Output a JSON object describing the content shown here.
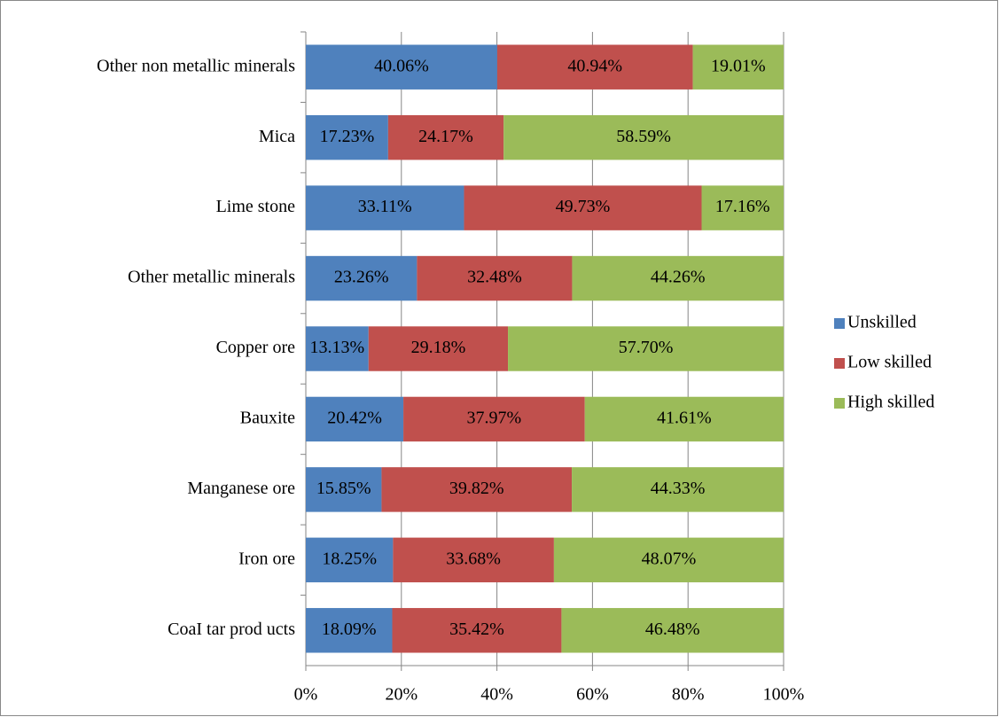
{
  "chart_data": {
    "type": "stacked-barh",
    "categories": [
      "Other non metallic minerals",
      "Mica",
      "Lime stone",
      "Other metallic minerals",
      "Copper ore",
      "Bauxite",
      "Manganese ore",
      "Iron ore",
      "CoaI tar prod ucts"
    ],
    "series": [
      {
        "name": "Unskilled",
        "color": "#4f81bd",
        "values": [
          40.06,
          17.23,
          33.11,
          23.26,
          13.13,
          20.42,
          15.85,
          18.25,
          18.09
        ],
        "value_labels": [
          "40.06%",
          "17.23%",
          "33.11%",
          "23.26%",
          "13.13%",
          "20.42%",
          "15.85%",
          "18.25%",
          "18.09%"
        ]
      },
      {
        "name": "Low skilled",
        "color": "#c0504d",
        "values": [
          40.94,
          24.17,
          49.73,
          32.48,
          29.18,
          37.97,
          39.82,
          33.68,
          35.42
        ],
        "value_labels": [
          "40.94%",
          "24.17%",
          "49.73%",
          "32.48%",
          "29.18%",
          "37.97%",
          "39.82%",
          "33.68%",
          "35.42%"
        ]
      },
      {
        "name": "High skilled",
        "color": "#9bbb59",
        "values": [
          19.01,
          58.59,
          17.16,
          44.26,
          57.7,
          41.61,
          44.33,
          48.07,
          46.48
        ],
        "value_labels": [
          "19.01%",
          "58.59%",
          "17.16%",
          "44.26%",
          "57.70%",
          "41.61%",
          "44.33%",
          "48.07%",
          "46.48%"
        ]
      }
    ],
    "xlim": [
      0,
      100
    ],
    "xticks": [
      {
        "value": 0,
        "label": "0%"
      },
      {
        "value": 20,
        "label": "20%"
      },
      {
        "value": 40,
        "label": "40%"
      },
      {
        "value": 60,
        "label": "60%"
      },
      {
        "value": 80,
        "label": "80%"
      },
      {
        "value": 100,
        "label": "100%"
      }
    ],
    "grid": true,
    "legend": "right"
  }
}
